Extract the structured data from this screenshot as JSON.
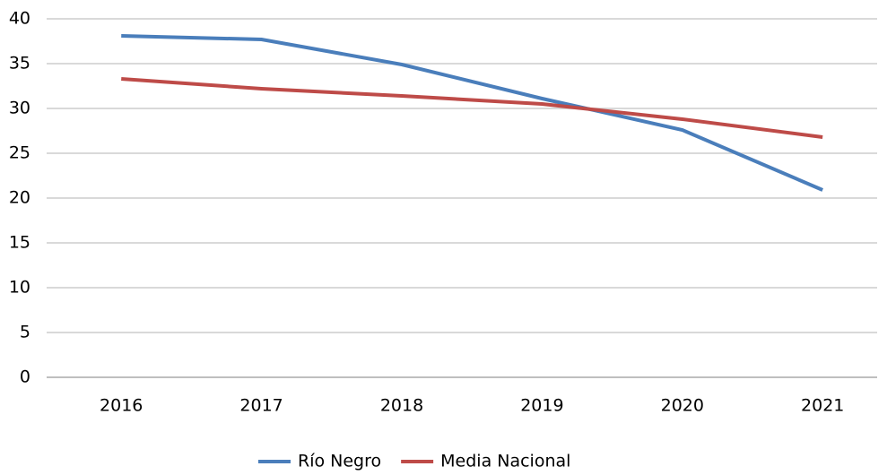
{
  "chart_data": {
    "type": "line",
    "categories": [
      "2016",
      "2017",
      "2018",
      "2019",
      "2020",
      "2021"
    ],
    "series": [
      {
        "name": "Río Negro",
        "color": "#4a7ebb",
        "values": [
          38.1,
          37.7,
          34.9,
          31.1,
          27.6,
          20.9
        ]
      },
      {
        "name": "Media Nacional",
        "color": "#be4b48",
        "values": [
          33.3,
          32.2,
          31.4,
          30.5,
          28.8,
          26.8
        ]
      }
    ],
    "ylim": [
      0,
      40
    ],
    "yticks": [
      0,
      5,
      10,
      15,
      20,
      25,
      30,
      35,
      40
    ],
    "grid": true,
    "legend": "bottom"
  }
}
